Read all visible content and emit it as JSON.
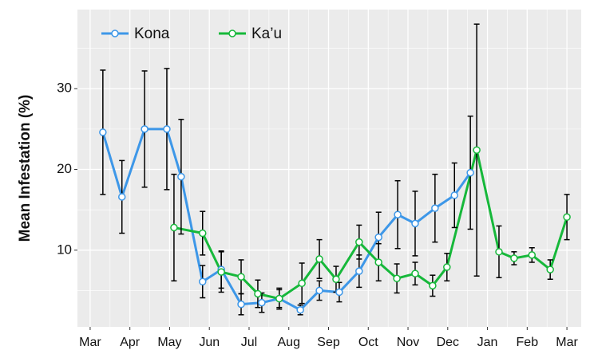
{
  "chart_data": {
    "type": "line",
    "y_label": "Mean Infestation (%)",
    "xlim": [
      -0.32,
      12.36
    ],
    "xticks": [
      {
        "value": 0,
        "label": "Mar"
      },
      {
        "value": 1,
        "label": "Apr"
      },
      {
        "value": 2,
        "label": "May"
      },
      {
        "value": 3,
        "label": "Jun"
      },
      {
        "value": 4,
        "label": "Jul"
      },
      {
        "value": 5,
        "label": "Aug"
      },
      {
        "value": 6,
        "label": "Sep"
      },
      {
        "value": 7,
        "label": "Oct"
      },
      {
        "value": 8,
        "label": "Nov"
      },
      {
        "value": 9,
        "label": "Dec"
      },
      {
        "value": 10,
        "label": "Jan"
      },
      {
        "value": 11,
        "label": "Feb"
      },
      {
        "value": 12,
        "label": "Mar"
      }
    ],
    "ylim": [
      0.5,
      39.8
    ],
    "yticks": [
      10,
      20,
      30
    ],
    "yminor_ticks": [
      5,
      15,
      25,
      35
    ],
    "grid": true,
    "legend": "top-left",
    "series": [
      {
        "name": "Kona",
        "color": "#3d97e8",
        "x": [
          0.32,
          0.8,
          1.37,
          1.93,
          2.29,
          2.83,
          3.3,
          3.8,
          4.32,
          4.76,
          5.29,
          5.77,
          6.27,
          6.77,
          7.26,
          7.74,
          8.18,
          8.68,
          9.17,
          9.57
        ],
        "values": [
          24.6,
          16.6,
          25.0,
          25.0,
          19.1,
          6.1,
          7.6,
          3.3,
          3.5,
          4.0,
          2.6,
          5.0,
          4.8,
          7.4,
          11.6,
          14.4,
          13.3,
          15.2,
          16.8,
          19.6
        ],
        "errors": [
          7.7,
          4.5,
          7.2,
          7.5,
          7.1,
          2.0,
          2.3,
          1.3,
          1.2,
          1.1,
          0.6,
          1.2,
          1.2,
          2.0,
          3.1,
          4.2,
          4.0,
          4.2,
          4.0,
          7.0
        ]
      },
      {
        "name": "Ka’u",
        "color": "#16b83a",
        "x": [
          2.11,
          2.83,
          3.3,
          3.8,
          4.22,
          4.76,
          5.33,
          5.77,
          6.19,
          6.77,
          7.26,
          7.72,
          8.18,
          8.62,
          8.98,
          9.73,
          10.29,
          10.67,
          11.12,
          11.58,
          12.0
        ],
        "values": [
          12.8,
          12.1,
          7.3,
          6.7,
          4.6,
          4.0,
          5.9,
          8.9,
          6.4,
          11.0,
          8.5,
          6.5,
          7.1,
          5.6,
          7.9,
          22.4,
          9.8,
          9.0,
          9.4,
          7.6,
          14.1
        ],
        "errors": [
          6.6,
          2.7,
          2.5,
          2.1,
          1.7,
          1.3,
          2.5,
          2.4,
          1.6,
          2.1,
          2.3,
          1.8,
          1.4,
          1.3,
          1.7,
          15.6,
          3.2,
          0.8,
          0.9,
          1.2,
          2.8
        ]
      }
    ]
  }
}
